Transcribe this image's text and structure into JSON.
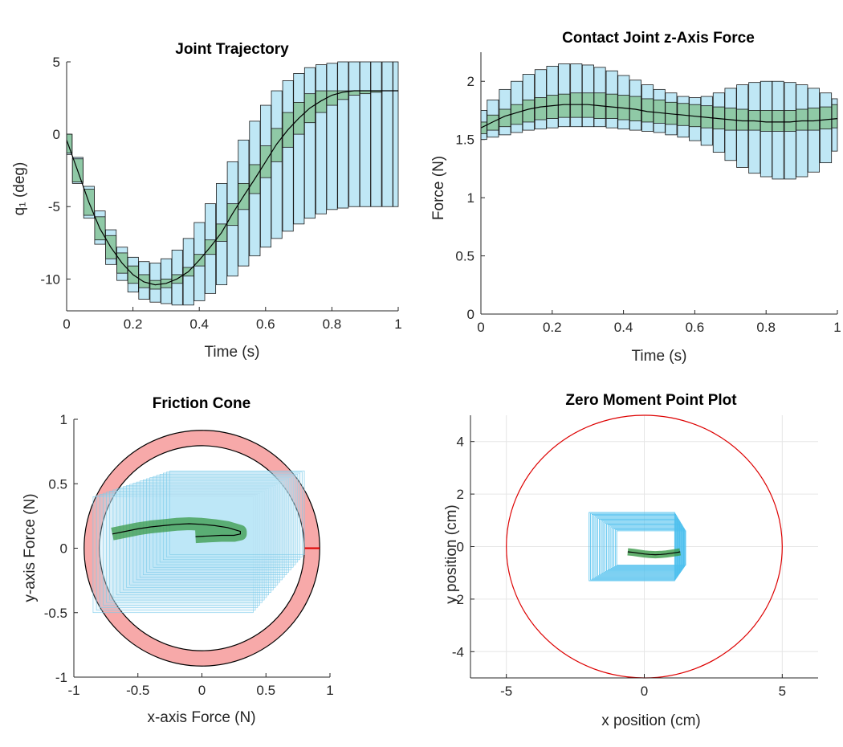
{
  "colors": {
    "blue_fill": "#bfe7f5",
    "blue_edge": "#1a1a1a",
    "green_fill": "#8fc9a6",
    "green_edge": "#1a1a1a",
    "cone_fill": "#f7a9a9",
    "circle_red": "#dd0000",
    "zmp_blue": "#4fc0ee",
    "zmp_green": "#3a9a48"
  },
  "chart_data": [
    {
      "type": "line",
      "title": "Joint Trajectory",
      "xlabel": "Time (s)",
      "ylabel": "q₁ (deg)",
      "xlim": [
        0,
        1
      ],
      "ylim": [
        -12.2,
        5
      ],
      "xticks": [
        "0",
        "0.2",
        "0.4",
        "0.6",
        "0.8",
        "1"
      ],
      "yticks": [
        "-10",
        "-5",
        "0",
        "5"
      ],
      "grid": false,
      "x": [
        0.0,
        0.033,
        0.067,
        0.1,
        0.133,
        0.167,
        0.2,
        0.233,
        0.267,
        0.3,
        0.333,
        0.367,
        0.4,
        0.433,
        0.467,
        0.5,
        0.533,
        0.567,
        0.6,
        0.633,
        0.667,
        0.7,
        0.733,
        0.767,
        0.8,
        0.833,
        0.867,
        0.9,
        0.933,
        0.967,
        1.0
      ],
      "series": [
        {
          "role": "mean",
          "values": [
            -0.4,
            -2.5,
            -4.7,
            -6.5,
            -7.8,
            -8.9,
            -9.7,
            -10.2,
            -10.4,
            -10.3,
            -10.0,
            -9.5,
            -8.7,
            -7.8,
            -6.8,
            -5.5,
            -4.3,
            -3.1,
            -1.9,
            -0.7,
            0.3,
            1.1,
            1.8,
            2.3,
            2.7,
            2.9,
            3.0,
            3.0,
            3.0,
            3.0,
            3.0
          ]
        },
        {
          "role": "inner_low",
          "values": [
            -1.3,
            -3.3,
            -5.6,
            -7.3,
            -8.6,
            -9.6,
            -10.3,
            -10.6,
            -10.7,
            -10.6,
            -10.3,
            -9.8,
            -9.1,
            -8.3,
            -7.4,
            -6.3,
            -5.2,
            -4.1,
            -3.0,
            -1.9,
            -0.9,
            0.0,
            0.8,
            1.5,
            2.0,
            2.4,
            2.7,
            2.8,
            2.9,
            3.0,
            3.0
          ]
        },
        {
          "role": "inner_high",
          "values": [
            0.0,
            -1.7,
            -3.8,
            -5.7,
            -7.0,
            -8.2,
            -9.1,
            -9.7,
            -10.1,
            -10.0,
            -9.7,
            -9.2,
            -8.3,
            -7.3,
            -6.2,
            -4.8,
            -3.4,
            -2.1,
            -0.8,
            0.4,
            1.5,
            2.2,
            2.8,
            3.0,
            3.0,
            3.0,
            3.0,
            3.0,
            3.0,
            3.0,
            3.0
          ]
        },
        {
          "role": "outer_low",
          "values": [
            -1.4,
            -3.4,
            -5.8,
            -7.6,
            -9.0,
            -10.1,
            -10.9,
            -11.4,
            -11.6,
            -11.7,
            -11.8,
            -11.8,
            -11.5,
            -11.0,
            -10.4,
            -9.8,
            -9.1,
            -8.4,
            -7.8,
            -7.2,
            -6.7,
            -6.2,
            -5.8,
            -5.5,
            -5.2,
            -5.1,
            -5.0,
            -5.0,
            -5.0,
            -5.0,
            -5.0
          ]
        },
        {
          "role": "outer_high",
          "values": [
            0.0,
            -1.6,
            -3.6,
            -5.3,
            -6.6,
            -7.8,
            -8.5,
            -8.8,
            -8.9,
            -8.6,
            -8.0,
            -7.2,
            -6.1,
            -4.8,
            -3.4,
            -1.9,
            -0.4,
            0.9,
            2.0,
            3.0,
            3.7,
            4.2,
            4.6,
            4.8,
            4.9,
            5.0,
            5.0,
            5.0,
            5.0,
            5.0,
            5.0
          ]
        }
      ]
    },
    {
      "type": "line",
      "title": "Contact Joint z-Axis Force",
      "xlabel": "Time (s)",
      "ylabel": "Force (N)",
      "xlim": [
        0,
        1
      ],
      "ylim": [
        0,
        2.25
      ],
      "xticks": [
        "0",
        "0.2",
        "0.4",
        "0.6",
        "0.8",
        "1"
      ],
      "yticks": [
        "0",
        "0.5",
        "1",
        "1.5",
        "2"
      ],
      "grid": false,
      "x": [
        0.0,
        0.033,
        0.067,
        0.1,
        0.133,
        0.167,
        0.2,
        0.233,
        0.267,
        0.3,
        0.333,
        0.367,
        0.4,
        0.433,
        0.467,
        0.5,
        0.533,
        0.567,
        0.6,
        0.633,
        0.667,
        0.7,
        0.733,
        0.767,
        0.8,
        0.833,
        0.867,
        0.9,
        0.933,
        0.967,
        1.0
      ],
      "series": [
        {
          "role": "mean",
          "values": [
            1.6,
            1.65,
            1.7,
            1.73,
            1.76,
            1.78,
            1.79,
            1.8,
            1.8,
            1.8,
            1.79,
            1.78,
            1.77,
            1.76,
            1.74,
            1.73,
            1.72,
            1.71,
            1.7,
            1.69,
            1.68,
            1.67,
            1.66,
            1.66,
            1.65,
            1.65,
            1.65,
            1.66,
            1.66,
            1.67,
            1.68
          ]
        },
        {
          "role": "inner_low",
          "values": [
            1.55,
            1.58,
            1.61,
            1.63,
            1.65,
            1.67,
            1.68,
            1.69,
            1.69,
            1.69,
            1.68,
            1.68,
            1.67,
            1.66,
            1.65,
            1.64,
            1.63,
            1.62,
            1.61,
            1.6,
            1.59,
            1.58,
            1.58,
            1.58,
            1.57,
            1.57,
            1.57,
            1.58,
            1.58,
            1.59,
            1.6
          ]
        },
        {
          "role": "inner_high",
          "values": [
            1.65,
            1.71,
            1.76,
            1.8,
            1.84,
            1.86,
            1.88,
            1.89,
            1.9,
            1.9,
            1.9,
            1.89,
            1.88,
            1.87,
            1.85,
            1.84,
            1.82,
            1.81,
            1.8,
            1.79,
            1.78,
            1.77,
            1.76,
            1.75,
            1.75,
            1.75,
            1.75,
            1.76,
            1.77,
            1.78,
            1.8
          ]
        },
        {
          "role": "outer_low",
          "values": [
            1.5,
            1.52,
            1.54,
            1.56,
            1.58,
            1.59,
            1.6,
            1.61,
            1.61,
            1.61,
            1.61,
            1.6,
            1.59,
            1.58,
            1.57,
            1.56,
            1.54,
            1.52,
            1.49,
            1.45,
            1.39,
            1.32,
            1.26,
            1.21,
            1.18,
            1.16,
            1.16,
            1.18,
            1.22,
            1.3,
            1.4
          ]
        },
        {
          "role": "outer_high",
          "values": [
            1.75,
            1.84,
            1.93,
            2.0,
            2.06,
            2.1,
            2.13,
            2.15,
            2.15,
            2.14,
            2.12,
            2.09,
            2.05,
            2.01,
            1.97,
            1.93,
            1.9,
            1.87,
            1.86,
            1.87,
            1.9,
            1.94,
            1.97,
            1.99,
            2.0,
            2.0,
            1.99,
            1.97,
            1.94,
            1.9,
            1.85
          ]
        }
      ]
    },
    {
      "type": "scatter",
      "title": "Friction Cone",
      "xlabel": "x-axis Force (N)",
      "ylabel": "y-axis Force (N)",
      "xlim": [
        -1,
        1
      ],
      "ylim": [
        -1,
        1
      ],
      "xticks": [
        "-1",
        "-0.5",
        "0",
        "0.5",
        "1"
      ],
      "yticks": [
        "-1",
        "-0.5",
        "0",
        "0.5",
        "1"
      ],
      "grid": false,
      "cone": {
        "outer_radius": 0.92,
        "inner_radius": 0.8,
        "marker_angle_deg": 0
      },
      "outer_box": {
        "x": [
          -0.85,
          0.8
        ],
        "y": [
          -0.5,
          0.6
        ]
      },
      "trajectory": {
        "x": [
          -0.7,
          -0.6,
          -0.5,
          -0.4,
          -0.3,
          -0.2,
          -0.1,
          0.0,
          0.1,
          0.2,
          0.3,
          0.3,
          0.25,
          0.15,
          0.05,
          -0.05
        ],
        "y": [
          0.11,
          0.13,
          0.15,
          0.165,
          0.175,
          0.185,
          0.19,
          0.185,
          0.175,
          0.16,
          0.13,
          0.11,
          0.1,
          0.1,
          0.095,
          0.09
        ]
      }
    },
    {
      "type": "scatter",
      "title": "Zero Moment Point Plot",
      "xlabel": "x position (cm)",
      "ylabel": "y position (cm)",
      "xlim": [
        -6.3,
        6.3
      ],
      "ylim": [
        -5,
        5
      ],
      "xticks": [
        "-5",
        "0",
        "5"
      ],
      "yticks": [
        "-4",
        "-2",
        "0",
        "2",
        "4"
      ],
      "grid": true,
      "support_circle_radius": 5,
      "outer_box": {
        "x": [
          -2,
          1.5
        ],
        "y": [
          -1.3,
          1.3
        ]
      },
      "trajectory": {
        "x": [
          -0.6,
          -0.4,
          -0.2,
          0.0,
          0.2,
          0.4,
          0.6,
          0.8,
          1.0,
          1.2,
          1.3
        ],
        "y": [
          -0.2,
          -0.22,
          -0.25,
          -0.28,
          -0.3,
          -0.31,
          -0.3,
          -0.28,
          -0.25,
          -0.22,
          -0.2
        ]
      }
    }
  ]
}
